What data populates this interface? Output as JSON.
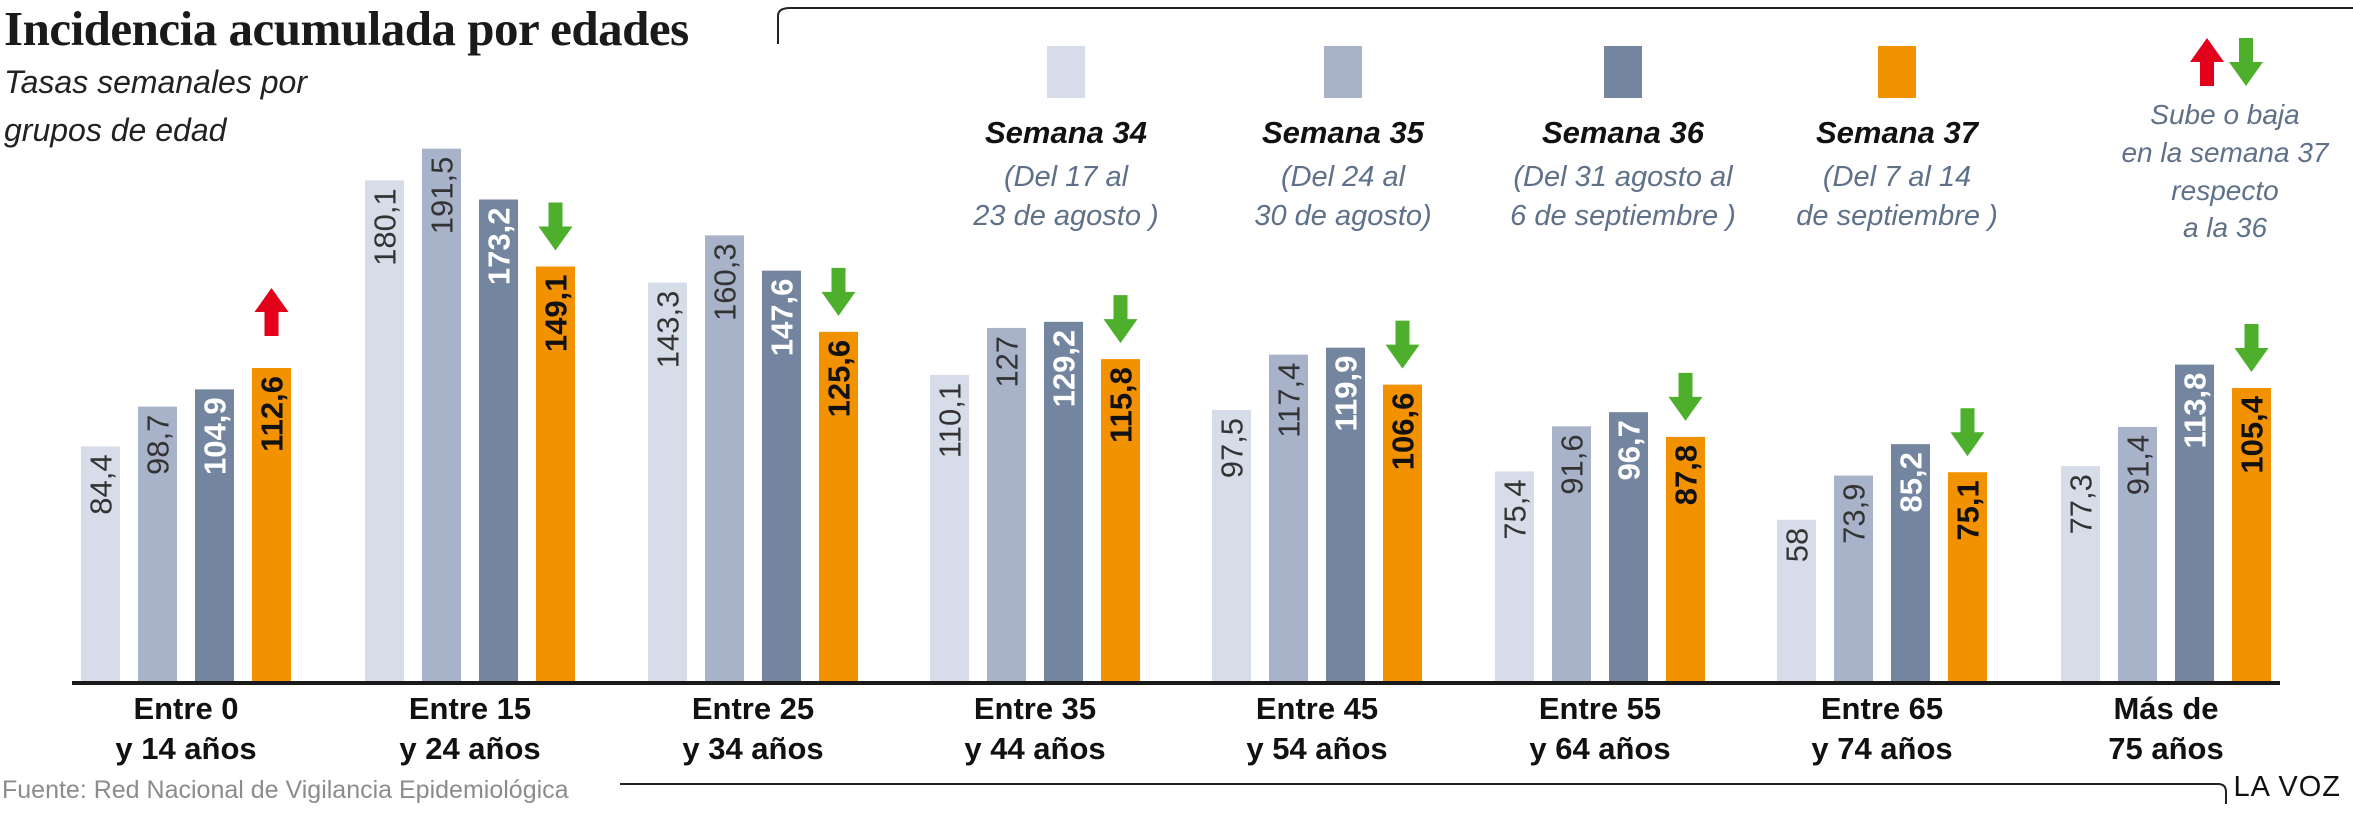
{
  "title": "Incidencia acumulada por edades",
  "subtitle": "Tasas semanales por grupos de edad",
  "source": "Fuente: Red Nacional de Vigilancia Epidemiológica",
  "brand": "LA VOZ",
  "colors": {
    "w34": "#d7dde8",
    "w35": "#a8b2c9",
    "w36": "#74869f",
    "w37": "#f39200",
    "up": "#e2001a",
    "down": "#4daf2c"
  },
  "legend": {
    "weeks": [
      {
        "name": "Semana 34",
        "range_line1": "(Del 17 al",
        "range_line2": "23 de agosto )"
      },
      {
        "name": "Semana 35",
        "range_line1": "(Del 24 al",
        "range_line2": "30 de agosto)"
      },
      {
        "name": "Semana 36",
        "range_line1": "(Del 31 agosto al",
        "range_line2": "6 de septiembre )"
      },
      {
        "name": "Semana 37",
        "range_line1": "(Del 7 al 14",
        "range_line2": "de septiembre )"
      }
    ],
    "trend_lines": [
      "Sube o baja",
      "en la semana 37",
      "respecto",
      "a la 36"
    ]
  },
  "chart_data": {
    "type": "bar",
    "title": "Incidencia acumulada por edades",
    "subtitle": "Tasas semanales por grupos de edad",
    "categories": [
      [
        "Entre 0",
        "y 14 años"
      ],
      [
        "Entre 15",
        "y 24 años"
      ],
      [
        "Entre 25",
        "y 34 años"
      ],
      [
        "Entre 35",
        "y 44 años"
      ],
      [
        "Entre 45",
        "y 54 años"
      ],
      [
        "Entre 55",
        "y 64 años"
      ],
      [
        "Entre 65",
        "y 74 años"
      ],
      [
        "Más de",
        "75 años"
      ]
    ],
    "series": [
      {
        "name": "Semana 34",
        "values": [
          84.4,
          180.1,
          143.3,
          110.1,
          97.5,
          75.4,
          58,
          77.3
        ],
        "labels": [
          "84,4",
          "180,1",
          "143,3",
          "110,1",
          "97,5",
          "75,4",
          "58",
          "77,3"
        ]
      },
      {
        "name": "Semana 35",
        "values": [
          98.7,
          191.5,
          160.3,
          127,
          117.4,
          91.6,
          73.9,
          91.4
        ],
        "labels": [
          "98,7",
          "191,5",
          "160,3",
          "127",
          "117,4",
          "91,6",
          "73,9",
          "91,4"
        ]
      },
      {
        "name": "Semana 36",
        "values": [
          104.9,
          173.2,
          147.6,
          129.2,
          119.9,
          96.7,
          85.2,
          113.8
        ],
        "labels": [
          "104,9",
          "173,2",
          "147,6",
          "129,2",
          "119,9",
          "96,7",
          "85,2",
          "113,8"
        ]
      },
      {
        "name": "Semana 37",
        "values": [
          112.6,
          149.1,
          125.6,
          115.8,
          106.6,
          87.8,
          75.1,
          105.4
        ],
        "labels": [
          "112,6",
          "149,1",
          "125,6",
          "115,8",
          "106,6",
          "87,8",
          "75,1",
          "105,4"
        ]
      }
    ],
    "trend": [
      "up",
      "down",
      "down",
      "down",
      "down",
      "down",
      "down",
      "down"
    ],
    "ylim": [
      0,
      200
    ],
    "grid": false,
    "legend_position": "top-right"
  }
}
